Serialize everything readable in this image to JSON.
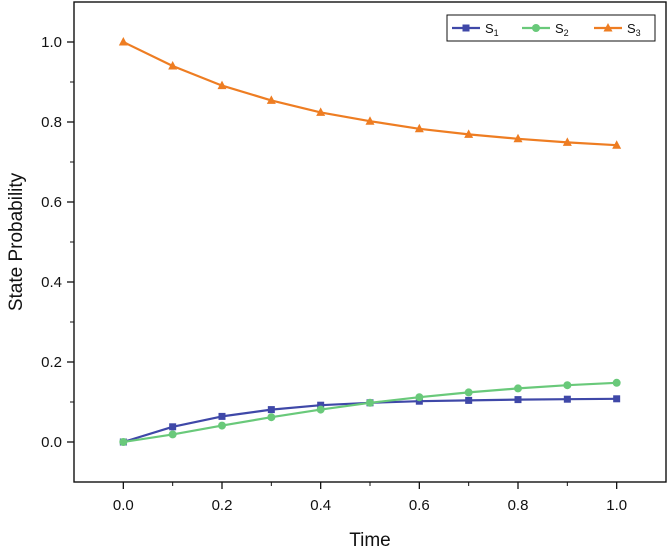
{
  "chart_data": {
    "type": "line",
    "title": "",
    "xlabel": "Time",
    "ylabel": "State Probability",
    "xlim": [
      -0.1,
      1.1
    ],
    "ylim": [
      -0.1,
      1.1
    ],
    "x_ticks": [
      0.0,
      0.2,
      0.4,
      0.6,
      0.8,
      1.0
    ],
    "x_tick_labels": [
      "0.0",
      "0.2",
      "0.4",
      "0.6",
      "0.8",
      "1.0"
    ],
    "y_ticks": [
      0.0,
      0.2,
      0.4,
      0.6,
      0.8,
      1.0
    ],
    "y_tick_labels": [
      "0.0",
      "0.2",
      "0.4",
      "0.6",
      "0.8",
      "1.0"
    ],
    "grid": false,
    "legend_position": "top-right",
    "x": [
      0.0,
      0.1,
      0.2,
      0.3,
      0.4,
      0.5,
      0.6,
      0.7,
      0.8,
      0.9,
      1.0
    ],
    "series": [
      {
        "name": "S",
        "subscript": "1",
        "color": "#3f48a8",
        "marker": "square",
        "values": [
          0.0,
          0.038,
          0.064,
          0.081,
          0.092,
          0.098,
          0.102,
          0.104,
          0.106,
          0.107,
          0.108
        ]
      },
      {
        "name": "S",
        "subscript": "2",
        "color": "#69c97a",
        "marker": "circle",
        "values": [
          0.0,
          0.019,
          0.041,
          0.062,
          0.081,
          0.098,
          0.112,
          0.124,
          0.134,
          0.142,
          0.148
        ]
      },
      {
        "name": "S",
        "subscript": "3",
        "color": "#ee7d22",
        "marker": "triangle",
        "values": [
          1.0,
          0.94,
          0.891,
          0.854,
          0.824,
          0.802,
          0.783,
          0.769,
          0.758,
          0.749,
          0.742
        ]
      }
    ]
  }
}
